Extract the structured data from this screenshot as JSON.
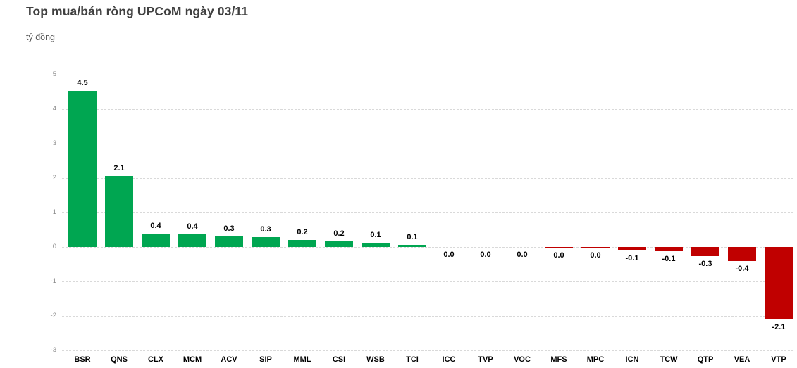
{
  "chart_data": {
    "type": "bar",
    "title": "Top mua/bán ròng UPCoM ngày 03/11",
    "unit_label": "tỷ đồng",
    "categories": [
      "BSR",
      "QNS",
      "CLX",
      "MCM",
      "ACV",
      "SIP",
      "MML",
      "CSI",
      "WSB",
      "TCI",
      "ICC",
      "TVP",
      "VOC",
      "MFS",
      "MPC",
      "ICN",
      "TCW",
      "QTP",
      "VEA",
      "VTP"
    ],
    "values": [
      4.53,
      2.07,
      0.38,
      0.36,
      0.3,
      0.28,
      0.2,
      0.17,
      0.12,
      0.07,
      0.0,
      0.0,
      0.0,
      -0.03,
      -0.03,
      -0.1,
      -0.13,
      -0.27,
      -0.4,
      -2.1
    ],
    "value_labels": [
      "4.5",
      "2.1",
      "0.4",
      "0.4",
      "0.3",
      "0.3",
      "0.2",
      "0.2",
      "0.1",
      "0.1",
      "0.0",
      "0.0",
      "0.0",
      "0.0",
      "0.0",
      "-0.1",
      "-0.1",
      "-0.3",
      "-0.4",
      "-2.1"
    ],
    "y_ticks": [
      5,
      4,
      3,
      2,
      1,
      0,
      -1,
      -2,
      -3
    ],
    "ylim": [
      -3,
      5
    ],
    "xlabel": "",
    "ylabel": "tỷ đồng",
    "grid": "horizontal-dashed",
    "legend": "none",
    "colors": {
      "positive": "#00A651",
      "negative": "#C00000",
      "grid": "#d9d9d9"
    }
  }
}
